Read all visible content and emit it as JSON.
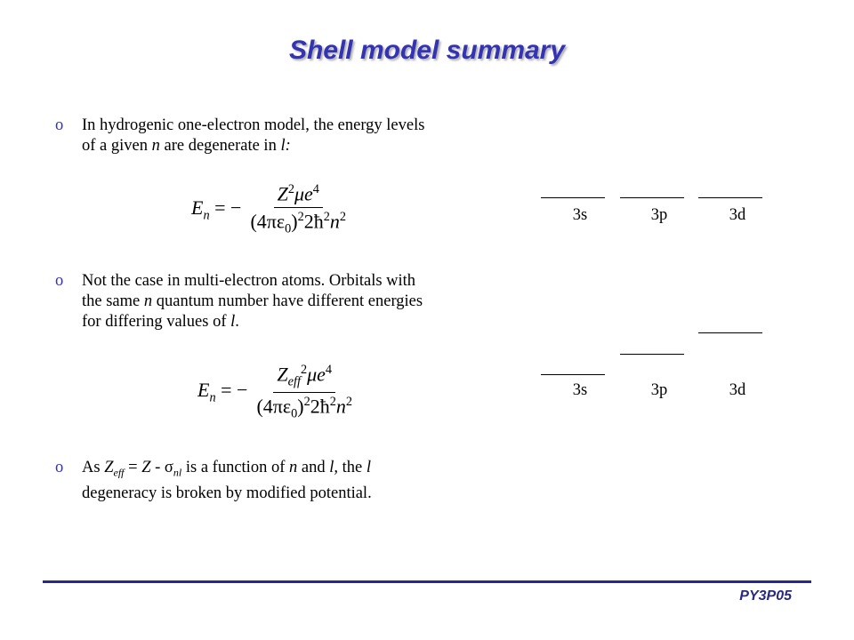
{
  "title": "Shell model summary",
  "bullets": [
    {
      "marker": "o",
      "lines": [
        [
          {
            "text": "In hydrogenic one-electron model, the energy levels"
          }
        ],
        [
          {
            "text": "of a given "
          },
          {
            "text": "n",
            "italic": true
          },
          {
            "text": " are degenerate in "
          },
          {
            "text": "l:",
            "italic": true
          }
        ]
      ]
    },
    {
      "marker": "o",
      "lines": [
        [
          {
            "text": "Not the case in multi-electron atoms. Orbitals with"
          }
        ],
        [
          {
            "text": "the same "
          },
          {
            "text": "n",
            "italic": true
          },
          {
            "text": " quantum number have different energies"
          }
        ],
        [
          {
            "text": "for differing values of "
          },
          {
            "text": "l",
            "italic": true
          },
          {
            "text": "."
          }
        ]
      ]
    },
    {
      "marker": "o",
      "lines": [
        [
          {
            "text": "As "
          },
          {
            "text": "Z",
            "italic": true
          },
          {
            "text": "eff",
            "italic": true,
            "sub": true
          },
          {
            "text": " = "
          },
          {
            "text": "Z",
            "italic": true
          },
          {
            "text": " - "
          },
          {
            "text": "σ"
          },
          {
            "text": "nl",
            "italic": true,
            "sub": true
          },
          {
            "text": " is a function of "
          },
          {
            "text": "n",
            "italic": true
          },
          {
            "text": " and "
          },
          {
            "text": "l,",
            "italic": true
          },
          {
            "text": " the "
          },
          {
            "text": "l",
            "italic": true
          }
        ],
        [
          {
            "text": "degeneracy is broken by modified potential."
          }
        ]
      ]
    }
  ],
  "equations": [
    {
      "lhs": [
        {
          "text": "E",
          "italic": true
        },
        {
          "text": "n",
          "italic": true,
          "sub": true
        },
        {
          "text": " = −"
        }
      ],
      "numerator": [
        {
          "text": "Z",
          "italic": true
        },
        {
          "text": "2",
          "sup": true
        },
        {
          "text": "μe",
          "italic": true
        },
        {
          "text": "4",
          "sup": true
        }
      ],
      "denominator": [
        {
          "text": "(4πε"
        },
        {
          "text": "0",
          "sub": true
        },
        {
          "text": ")"
        },
        {
          "text": "2",
          "sup": true
        },
        {
          "text": "2ħ"
        },
        {
          "text": "2",
          "sup": true
        },
        {
          "text": "n",
          "italic": true
        },
        {
          "text": "2",
          "sup": true
        }
      ]
    },
    {
      "lhs": [
        {
          "text": "E",
          "italic": true
        },
        {
          "text": "n",
          "italic": true,
          "sub": true
        },
        {
          "text": " = −"
        }
      ],
      "numerator": [
        {
          "text": "Z",
          "italic": true
        },
        {
          "text": "eff",
          "italic": true,
          "sub": true
        },
        {
          "text": "2",
          "sup": true
        },
        {
          "text": "μe",
          "italic": true
        },
        {
          "text": "4",
          "sup": true
        }
      ],
      "denominator": [
        {
          "text": "(4πε"
        },
        {
          "text": "0",
          "sub": true
        },
        {
          "text": ")"
        },
        {
          "text": "2",
          "sup": true
        },
        {
          "text": "2ħ"
        },
        {
          "text": "2",
          "sup": true
        },
        {
          "text": "n",
          "italic": true
        },
        {
          "text": "2",
          "sup": true
        }
      ]
    }
  ],
  "diagrams": [
    {
      "labels": [
        "3s",
        "3p",
        "3d"
      ]
    },
    {
      "labels": [
        "3s",
        "3p",
        "3d"
      ]
    }
  ],
  "footer": "PY3P05"
}
